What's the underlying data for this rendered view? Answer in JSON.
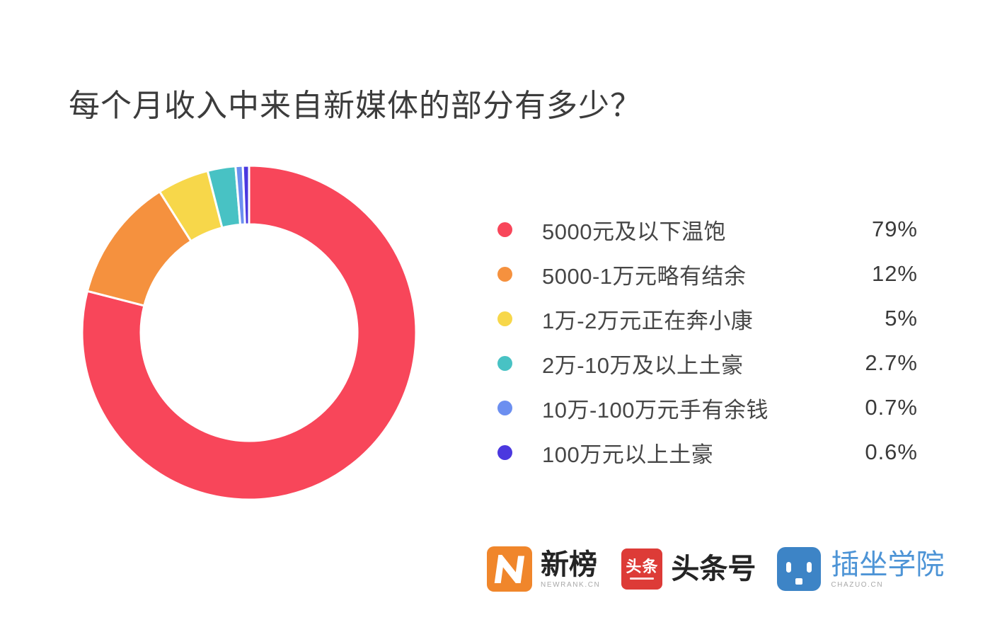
{
  "page": {
    "background": "#FFFFFF"
  },
  "chart_data": {
    "type": "pie",
    "subtype": "donut",
    "title": "每个月收入中来自新媒体的部分有多少？",
    "legend_position": "right",
    "start_angle": "top",
    "direction": "clockwise",
    "inner_radius_ratio": 0.65,
    "slice_gap_color": "#FFFFFF",
    "series": [
      {
        "label": "5000元及以下温饱",
        "value": 79,
        "display_value": "79%",
        "color": "#F8465A"
      },
      {
        "label": "5000-1万元略有结余",
        "value": 12,
        "display_value": "12%",
        "color": "#F5913E"
      },
      {
        "label": "1万-2万元正在奔小康",
        "value": 5,
        "display_value": "5%",
        "color": "#F7D74A"
      },
      {
        "label": "2万-10万及以上土豪",
        "value": 2.7,
        "display_value": "2.7%",
        "color": "#48C2C4"
      },
      {
        "label": "10万-100万元手有余钱",
        "value": 0.7,
        "display_value": "0.7%",
        "color": "#6C8FF0"
      },
      {
        "label": "100万元以上土豪",
        "value": 0.6,
        "display_value": "0.6%",
        "color": "#4B38DF"
      }
    ]
  },
  "footer": {
    "logos": [
      {
        "name": "新榜",
        "caption": "NEWRANK.CN",
        "brand_color": "#F0862B"
      },
      {
        "name": "头条号",
        "icon_text": "头条",
        "brand_color": "#DD3B37"
      },
      {
        "name": "插坐学院",
        "caption": "CHAZUO.CN",
        "brand_color": "#3D84C6",
        "text_color": "#4D94D6"
      }
    ]
  }
}
